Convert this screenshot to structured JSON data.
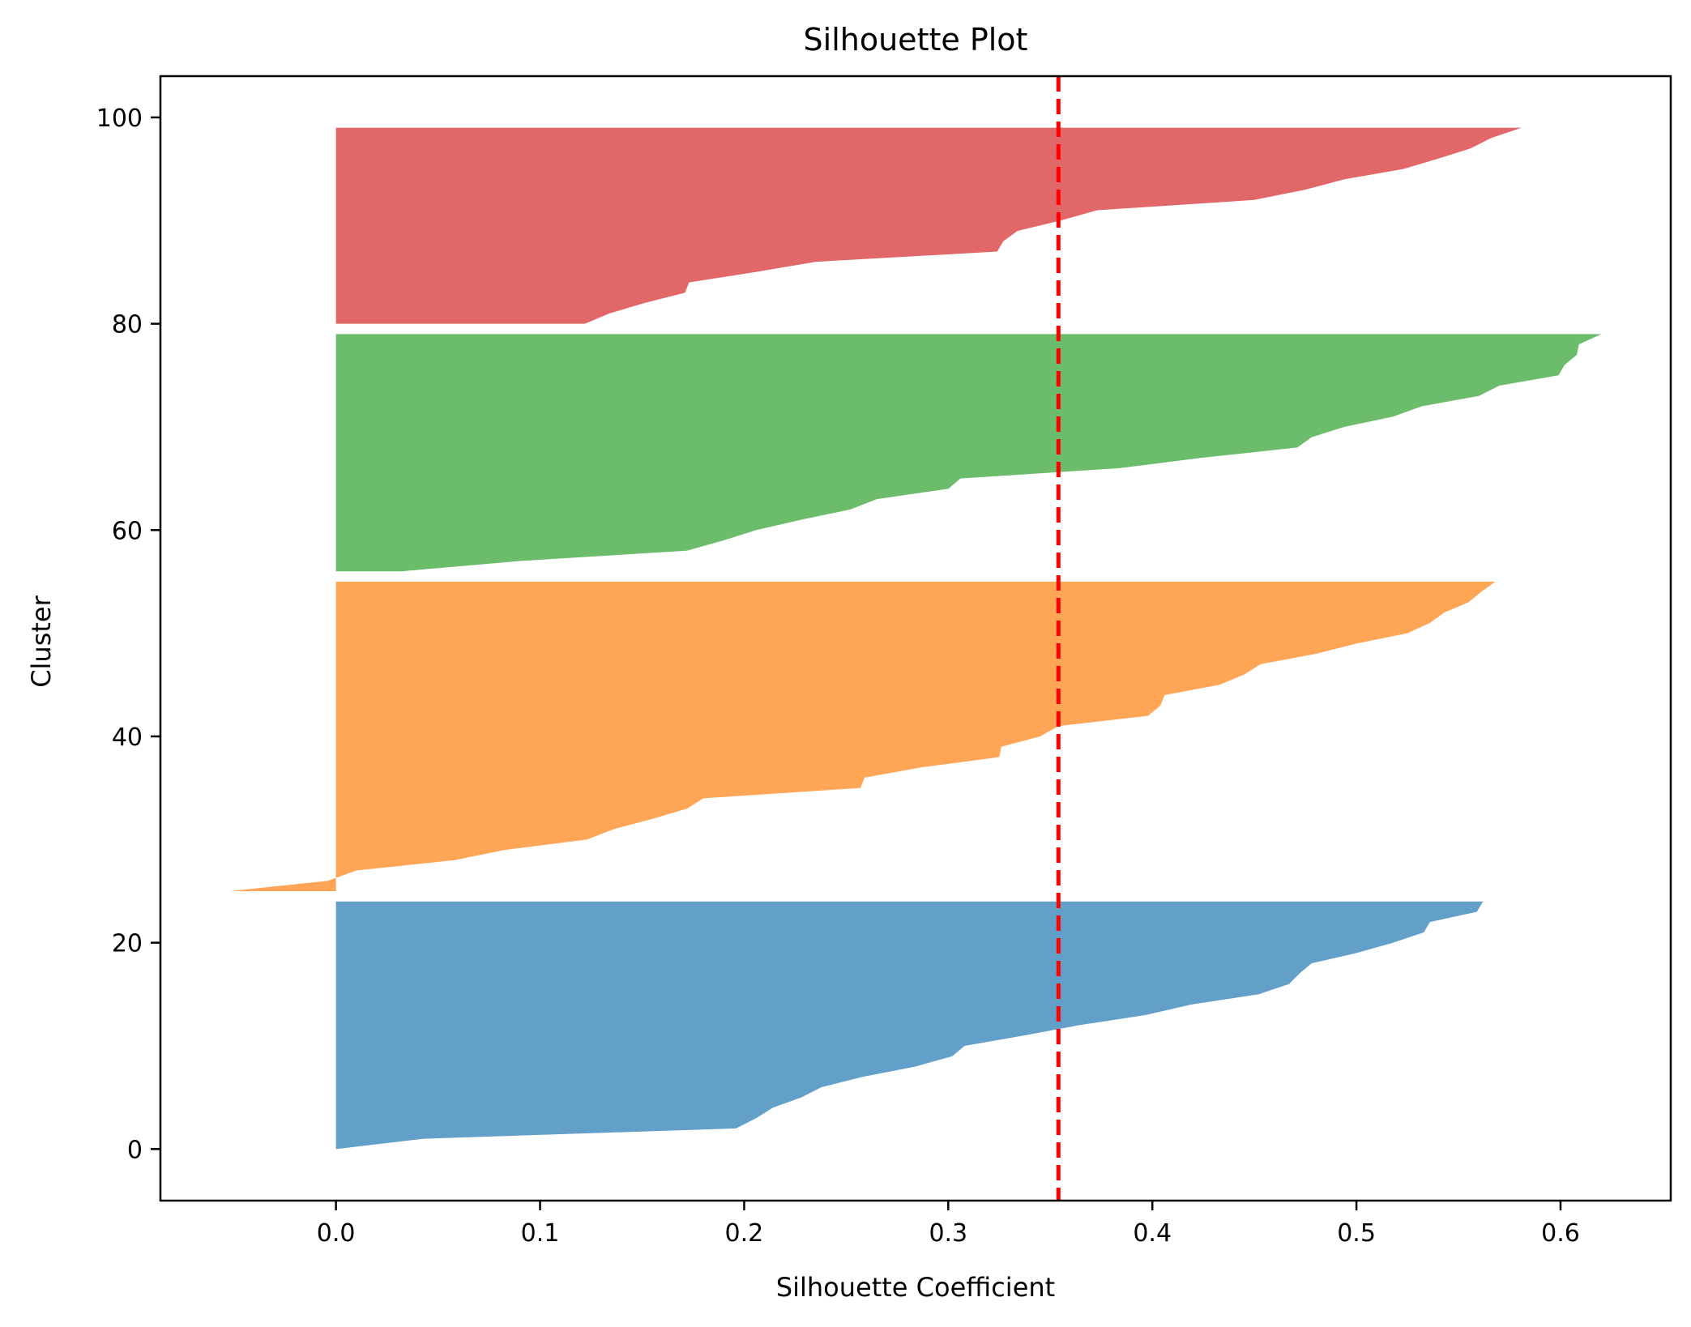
{
  "chart_data": {
    "type": "area",
    "title": "Silhouette Plot",
    "xlabel": "Silhouette Coefficient",
    "ylabel": "Cluster",
    "xlim": [
      -0.086,
      0.654
    ],
    "ylim": [
      -5,
      104
    ],
    "xticks": [
      0.0,
      0.1,
      0.2,
      0.3,
      0.4,
      0.5,
      0.6
    ],
    "yticks": [
      0,
      20,
      40,
      60,
      80,
      100
    ],
    "grid": false,
    "mean_line": {
      "x": 0.354,
      "color": "#ff0000",
      "style": "dashed"
    },
    "series": [
      {
        "color": "#1f77b4",
        "points": [
          [
            0,
            0.0
          ],
          [
            1,
            0.043
          ],
          [
            2,
            0.196
          ],
          [
            3,
            0.206
          ],
          [
            4,
            0.214
          ],
          [
            5,
            0.228
          ],
          [
            6,
            0.238
          ],
          [
            7,
            0.258
          ],
          [
            8,
            0.284
          ],
          [
            9,
            0.302
          ],
          [
            10,
            0.308
          ],
          [
            11,
            0.337
          ],
          [
            12,
            0.364
          ],
          [
            13,
            0.397
          ],
          [
            14,
            0.419
          ],
          [
            15,
            0.452
          ],
          [
            16,
            0.467
          ],
          [
            17,
            0.472
          ],
          [
            18,
            0.478
          ],
          [
            19,
            0.5
          ],
          [
            20,
            0.518
          ],
          [
            21,
            0.533
          ],
          [
            22,
            0.536
          ],
          [
            23,
            0.559
          ],
          [
            24,
            0.562
          ]
        ]
      },
      {
        "color": "#ff7f0e",
        "points": [
          [
            25,
            -0.052
          ],
          [
            26,
            -0.004
          ],
          [
            27,
            0.01
          ],
          [
            28,
            0.058
          ],
          [
            29,
            0.083
          ],
          [
            30,
            0.123
          ],
          [
            31,
            0.136
          ],
          [
            32,
            0.155
          ],
          [
            33,
            0.172
          ],
          [
            34,
            0.18
          ],
          [
            35,
            0.257
          ],
          [
            36,
            0.259
          ],
          [
            37,
            0.287
          ],
          [
            38,
            0.325
          ],
          [
            39,
            0.326
          ],
          [
            40,
            0.345
          ],
          [
            41,
            0.354
          ],
          [
            42,
            0.398
          ],
          [
            43,
            0.404
          ],
          [
            44,
            0.406
          ],
          [
            45,
            0.433
          ],
          [
            46,
            0.445
          ],
          [
            47,
            0.453
          ],
          [
            48,
            0.48
          ],
          [
            49,
            0.5
          ],
          [
            50,
            0.525
          ],
          [
            51,
            0.536
          ],
          [
            52,
            0.543
          ],
          [
            53,
            0.555
          ],
          [
            54,
            0.561
          ],
          [
            55,
            0.568
          ]
        ]
      },
      {
        "color": "#2ca02c",
        "points": [
          [
            56,
            0.032
          ],
          [
            57,
            0.09
          ],
          [
            58,
            0.172
          ],
          [
            59,
            0.19
          ],
          [
            60,
            0.206
          ],
          [
            61,
            0.228
          ],
          [
            62,
            0.252
          ],
          [
            63,
            0.265
          ],
          [
            64,
            0.3
          ],
          [
            65,
            0.306
          ],
          [
            66,
            0.384
          ],
          [
            67,
            0.424
          ],
          [
            68,
            0.471
          ],
          [
            69,
            0.478
          ],
          [
            70,
            0.494
          ],
          [
            71,
            0.518
          ],
          [
            72,
            0.532
          ],
          [
            73,
            0.56
          ],
          [
            74,
            0.57
          ],
          [
            75,
            0.599
          ],
          [
            76,
            0.602
          ],
          [
            77,
            0.608
          ],
          [
            78,
            0.609
          ],
          [
            79,
            0.62
          ]
        ]
      },
      {
        "color": "#d62728",
        "points": [
          [
            80,
            0.122
          ],
          [
            81,
            0.134
          ],
          [
            82,
            0.151
          ],
          [
            83,
            0.171
          ],
          [
            84,
            0.173
          ],
          [
            85,
            0.205
          ],
          [
            86,
            0.235
          ],
          [
            87,
            0.324
          ],
          [
            88,
            0.327
          ],
          [
            89,
            0.334
          ],
          [
            90,
            0.355
          ],
          [
            91,
            0.373
          ],
          [
            92,
            0.45
          ],
          [
            93,
            0.475
          ],
          [
            94,
            0.494
          ],
          [
            95,
            0.523
          ],
          [
            96,
            0.54
          ],
          [
            97,
            0.556
          ],
          [
            98,
            0.566
          ],
          [
            99,
            0.581
          ]
        ]
      }
    ]
  }
}
